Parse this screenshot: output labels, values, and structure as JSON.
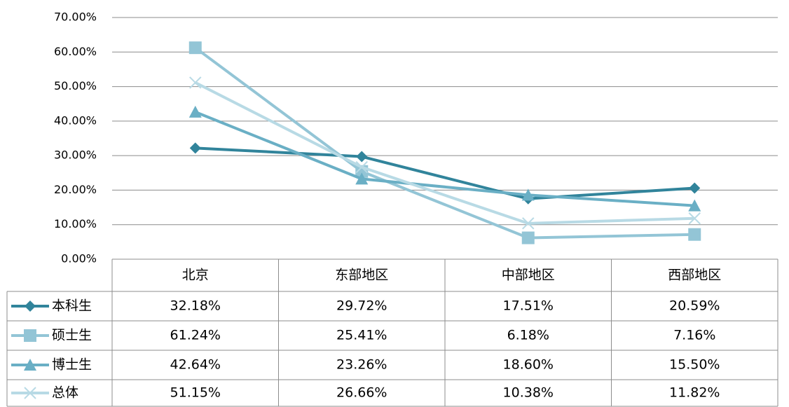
{
  "chart_data": {
    "type": "line",
    "categories": [
      "北京",
      "东部地区",
      "中部地区",
      "西部地区"
    ],
    "series": [
      {
        "name": "本科生",
        "color": "#31849b",
        "marker": "diamond",
        "values": [
          32.18,
          29.72,
          17.51,
          20.59
        ],
        "value_labels": [
          "32.18%",
          "29.72%",
          "17.51%",
          "20.59%"
        ]
      },
      {
        "name": "硕士生",
        "color": "#93c5d6",
        "marker": "square",
        "values": [
          61.24,
          25.41,
          6.18,
          7.16
        ],
        "value_labels": [
          "61.24%",
          "25.41%",
          "6.18%",
          "7.16%"
        ]
      },
      {
        "name": "博士生",
        "color": "#6aafc5",
        "marker": "triangle",
        "values": [
          42.64,
          23.26,
          18.6,
          15.5
        ],
        "value_labels": [
          "42.64%",
          "23.26%",
          "18.60%",
          "15.50%"
        ]
      },
      {
        "name": "总体",
        "color": "#b8dae5",
        "marker": "x",
        "values": [
          51.15,
          26.66,
          10.38,
          11.82
        ],
        "value_labels": [
          "51.15%",
          "26.66%",
          "10.38%",
          "11.82%"
        ]
      }
    ],
    "ylim": [
      0,
      70
    ],
    "yticks": [
      {
        "value": 0,
        "label": "0.00%"
      },
      {
        "value": 10,
        "label": "10.00%"
      },
      {
        "value": 20,
        "label": "20.00%"
      },
      {
        "value": 30,
        "label": "30.00%"
      },
      {
        "value": 40,
        "label": "40.00%"
      },
      {
        "value": 50,
        "label": "50.00%"
      },
      {
        "value": 60,
        "label": "60.00%"
      },
      {
        "value": 70,
        "label": "70.00%"
      }
    ],
    "grid": true
  }
}
